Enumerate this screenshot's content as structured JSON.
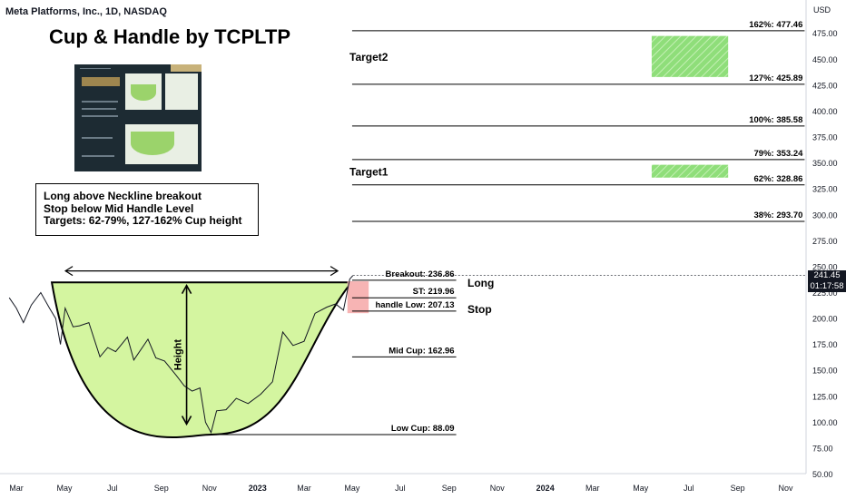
{
  "header": "Meta Platforms, Inc., 1D, NASDAQ",
  "title": "Cup & Handle by TCPLTP",
  "info_lines": [
    "Long above Neckline breakout",
    "Stop below Mid Handle Level",
    "Targets: 62-79%, 127-162% Cup height"
  ],
  "price_tag": {
    "price": "241.45",
    "countdown": "01:17:58"
  },
  "chart_data": {
    "type": "line",
    "currency_label": "USD",
    "y_axis": {
      "range": [
        50,
        495
      ],
      "ticks": [
        "475.00",
        "450.00",
        "425.00",
        "400.00",
        "375.00",
        "350.00",
        "325.00",
        "300.00",
        "275.00",
        "250.00",
        "225.00",
        "200.00",
        "175.00",
        "150.00",
        "125.00",
        "100.00",
        "75.00",
        "50.00"
      ]
    },
    "x_axis": {
      "ticks": [
        "Mar",
        "May",
        "Jul",
        "Sep",
        "Nov",
        "2023",
        "Mar",
        "May",
        "Jul",
        "Sep",
        "Nov",
        "2024",
        "Mar",
        "May",
        "Jul",
        "Sep",
        "Nov"
      ],
      "bold_ticks": [
        "2023",
        "2024"
      ]
    },
    "price_series": [
      [
        "2022-02-20",
        220
      ],
      [
        "2022-03-01",
        210
      ],
      [
        "2022-03-10",
        196
      ],
      [
        "2022-03-20",
        213
      ],
      [
        "2022-04-01",
        225
      ],
      [
        "2022-04-12",
        210
      ],
      [
        "2022-04-20",
        200
      ],
      [
        "2022-04-26",
        175
      ],
      [
        "2022-05-02",
        210
      ],
      [
        "2022-05-12",
        192
      ],
      [
        "2022-05-20",
        193
      ],
      [
        "2022-06-01",
        196
      ],
      [
        "2022-06-15",
        163
      ],
      [
        "2022-06-25",
        172
      ],
      [
        "2022-07-05",
        168
      ],
      [
        "2022-07-20",
        182
      ],
      [
        "2022-07-28",
        160
      ],
      [
        "2022-08-15",
        180
      ],
      [
        "2022-08-25",
        162
      ],
      [
        "2022-09-05",
        159
      ],
      [
        "2022-09-20",
        145
      ],
      [
        "2022-09-30",
        135
      ],
      [
        "2022-10-10",
        130
      ],
      [
        "2022-10-20",
        133
      ],
      [
        "2022-10-27",
        100
      ],
      [
        "2022-11-03",
        90
      ],
      [
        "2022-11-10",
        111
      ],
      [
        "2022-11-22",
        112
      ],
      [
        "2022-12-05",
        123
      ],
      [
        "2022-12-20",
        118
      ],
      [
        "2023-01-05",
        127
      ],
      [
        "2023-01-20",
        139
      ],
      [
        "2023-02-02",
        187
      ],
      [
        "2023-02-15",
        174
      ],
      [
        "2023-03-01",
        178
      ],
      [
        "2023-03-15",
        205
      ],
      [
        "2023-03-30",
        211
      ],
      [
        "2023-04-10",
        214
      ],
      [
        "2023-04-20",
        208
      ],
      [
        "2023-04-28",
        238
      ],
      [
        "2023-05-02",
        241.45
      ]
    ],
    "pattern": {
      "name": "Cup & Handle",
      "rim_level": 236.86,
      "cup_low": 88.09,
      "height_label": "Height"
    },
    "levels": [
      {
        "label": "Breakout: 236.86",
        "value": 236.86
      },
      {
        "label": "ST: 219.96",
        "value": 219.96
      },
      {
        "label": "handle Low: 207.13",
        "value": 207.13
      },
      {
        "label": "Mid Cup: 162.96",
        "value": 162.96
      },
      {
        "label": "Low Cup: 88.09",
        "value": 88.09
      }
    ],
    "side_labels": {
      "long": "Long",
      "stop": "Stop"
    },
    "fib_levels": [
      {
        "label": "162%: 477.46",
        "value": 477.46
      },
      {
        "label": "127%: 425.89",
        "value": 425.89
      },
      {
        "label": "100%: 385.58",
        "value": 385.58
      },
      {
        "label": "79%: 353.24",
        "value": 353.24
      },
      {
        "label": "62%: 328.86",
        "value": 328.86
      },
      {
        "label": "38%: 293.70",
        "value": 293.7
      }
    ],
    "targets": [
      {
        "label": "Target2",
        "from": 425.89,
        "to": 477.46
      },
      {
        "label": "Target1",
        "from": 328.86,
        "to": 353.24
      }
    ],
    "colors": {
      "cup_fill": "#d4f5a0",
      "target_fill": "#8fde7a",
      "stop_zone": "#f7b4b4",
      "line": "#131722"
    }
  }
}
